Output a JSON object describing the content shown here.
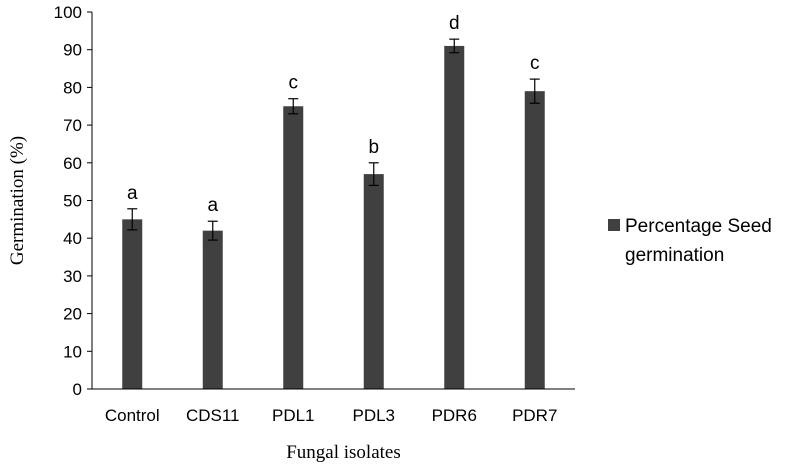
{
  "chart_data": {
    "type": "bar",
    "categories": [
      "Control",
      "CDS11",
      "PDL1",
      "PDL3",
      "PDR6",
      "PDR7"
    ],
    "series": [
      {
        "name": "Percentage Seed germination",
        "values": [
          45,
          42,
          75,
          57,
          91,
          79
        ],
        "errors": [
          2.8,
          2.5,
          2.0,
          3.0,
          1.8,
          3.2
        ],
        "labels": [
          "a",
          "a",
          "c",
          "b",
          "d",
          "c"
        ],
        "color": "#404040"
      }
    ],
    "xlabel": "Fungal isolates",
    "ylabel": "Germination (%)",
    "ylim": [
      0,
      100
    ],
    "yticks": [
      0,
      10,
      20,
      30,
      40,
      50,
      60,
      70,
      80,
      90,
      100
    ],
    "grid": false,
    "legend": {
      "placement": "right",
      "lines": [
        "Percentage Seed",
        "germination"
      ]
    }
  }
}
